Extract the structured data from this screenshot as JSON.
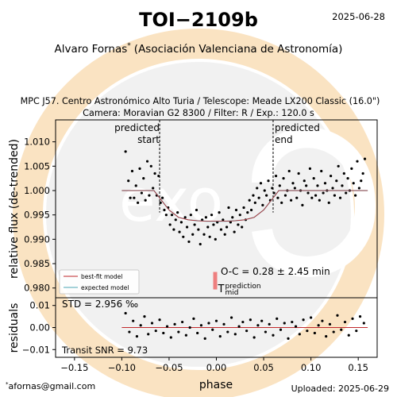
{
  "header": {
    "title": "TOI−2109b",
    "date": "2025-06-28",
    "observer": "Alvaro Fornas",
    "observer_mark": "*",
    "affiliation": "(Asociación Valenciana de Astronomía)",
    "obs_line1": "MPC J57. Centro Astronómico Alto Turia / Telescope: Meade LX200 Classic (16.0\")",
    "obs_line2": "Camera: Moravian G2 8300 / Filter: R / Exp.: 120.0 s"
  },
  "footer": {
    "email_mark": "*",
    "email": "afornas@gmail.com",
    "uploaded": "Uploaded: 2025-06-29"
  },
  "watermark": {
    "text": "exoclock",
    "colors": {
      "ring": "#f6c27a",
      "disc": "#d8d8d8"
    }
  },
  "colors": {
    "best_fit": "#c0282b",
    "expected": "#4aa5b4",
    "prediction_bar": "#ee7f7f",
    "points": "#000000"
  },
  "chart_data": [
    {
      "type": "scatter",
      "panel": "light-curve",
      "ylabel": "relative flux (de-trended)",
      "xlim": [
        -0.17,
        0.17
      ],
      "ylim": [
        0.978,
        1.0145
      ],
      "yticks": [
        "0.980",
        "0.985",
        "0.990",
        "0.995",
        "1.000",
        "1.005",
        "1.010"
      ],
      "ytick_values": [
        0.98,
        0.985,
        0.99,
        0.995,
        1.0,
        1.005,
        1.01
      ],
      "predicted_start": {
        "label_line1": "predicted",
        "label_line2": "start",
        "x": -0.06
      },
      "predicted_end": {
        "label_line1": "predicted",
        "label_line2": "end",
        "x": 0.06
      },
      "prediction_mid": {
        "label": "T",
        "sup": "prediction",
        "sub": "mid",
        "x": 0.0,
        "y": 0.9815
      },
      "oc_text": "O-C = 0.28 ± 2.45 min",
      "legend": {
        "placement": "bottom-left",
        "entries": [
          "best-fit model",
          "expected model"
        ]
      },
      "series": [
        {
          "name": "best-fit model",
          "color": "#c0282b"
        },
        {
          "name": "expected model",
          "color": "#4aa5b4"
        }
      ],
      "model": {
        "x": [
          -0.1,
          -0.066,
          -0.06,
          -0.05,
          -0.04,
          -0.03,
          -0.02,
          -0.01,
          0.0,
          0.01,
          0.02,
          0.03,
          0.04,
          0.05,
          0.06,
          0.066,
          0.16
        ],
        "y": [
          1.0,
          1.0,
          0.9985,
          0.996,
          0.9945,
          0.994,
          0.9938,
          0.9937,
          0.9937,
          0.9937,
          0.9938,
          0.994,
          0.9945,
          0.996,
          0.9985,
          1.0,
          1.0
        ]
      },
      "points": {
        "x": [
          -0.096,
          -0.093,
          -0.091,
          -0.089,
          -0.087,
          -0.085,
          -0.083,
          -0.081,
          -0.079,
          -0.077,
          -0.075,
          -0.073,
          -0.071,
          -0.069,
          -0.067,
          -0.065,
          -0.063,
          -0.061,
          -0.059,
          -0.057,
          -0.055,
          -0.053,
          -0.051,
          -0.049,
          -0.047,
          -0.045,
          -0.043,
          -0.041,
          -0.039,
          -0.037,
          -0.035,
          -0.033,
          -0.031,
          -0.029,
          -0.027,
          -0.025,
          -0.023,
          -0.021,
          -0.019,
          -0.017,
          -0.015,
          -0.013,
          -0.011,
          -0.009,
          -0.007,
          -0.005,
          -0.003,
          -0.001,
          0.001,
          0.003,
          0.005,
          0.007,
          0.009,
          0.011,
          0.013,
          0.015,
          0.017,
          0.019,
          0.021,
          0.023,
          0.025,
          0.027,
          0.029,
          0.031,
          0.033,
          0.035,
          0.037,
          0.039,
          0.041,
          0.043,
          0.045,
          0.047,
          0.049,
          0.051,
          0.053,
          0.055,
          0.057,
          0.059,
          0.061,
          0.063,
          0.065,
          0.067,
          0.069,
          0.071,
          0.073,
          0.075,
          0.077,
          0.079,
          0.081,
          0.083,
          0.085,
          0.087,
          0.089,
          0.091,
          0.093,
          0.095,
          0.097,
          0.099,
          0.101,
          0.103,
          0.105,
          0.107,
          0.109,
          0.111,
          0.113,
          0.115,
          0.117,
          0.119,
          0.121,
          0.123,
          0.125,
          0.127,
          0.129,
          0.131,
          0.133,
          0.135,
          0.137,
          0.139,
          0.141,
          0.143,
          0.145,
          0.147,
          0.149,
          0.151,
          0.153,
          0.155,
          0.157
        ],
        "y": [
          1.008,
          1.002,
          0.9985,
          1.004,
          0.9985,
          1.001,
          0.9975,
          1.0045,
          0.9995,
          1.0025,
          0.998,
          1.006,
          0.999,
          1.005,
          1.0005,
          1.0035,
          0.999,
          1.003,
          0.9975,
          0.9985,
          0.996,
          0.995,
          0.9965,
          0.993,
          0.995,
          0.992,
          0.994,
          0.9955,
          0.9915,
          0.9935,
          0.9905,
          0.9945,
          0.9925,
          0.9895,
          0.995,
          0.991,
          0.993,
          0.996,
          0.992,
          0.989,
          0.994,
          0.991,
          0.9945,
          0.9925,
          0.9905,
          0.995,
          0.993,
          0.99,
          0.9935,
          0.9955,
          0.992,
          0.994,
          0.991,
          0.9925,
          0.9965,
          0.9935,
          0.9945,
          0.9915,
          0.996,
          0.993,
          0.995,
          0.9925,
          0.9965,
          0.994,
          0.9955,
          0.998,
          0.996,
          0.999,
          0.9975,
          1.0005,
          0.9985,
          1.0015,
          0.997,
          1.0,
          0.999,
          1.002,
          0.998,
          1.0005,
          0.9995,
          1.003,
          0.9985,
          1.001,
          0.9975,
          1.0025,
          0.999,
          1.0,
          1.004,
          0.998,
          1.0015,
          1.0005,
          0.9985,
          1.0035,
          1.0,
          0.997,
          1.002,
          1.001,
          0.9995,
          1.0045,
          0.9985,
          1.0025,
          0.999,
          1.001,
          0.998,
          1.004,
          0.9995,
          1.0015,
          1.0,
          0.9975,
          1.003,
          1.0005,
          0.999,
          1.002,
          1.005,
          0.9985,
          1.001,
          1.0035,
          0.9995,
          1.0025,
          1.0,
          1.0045,
          1.0015,
          0.999,
          1.006,
          1.0005,
          1.002,
          1.0035,
          1.0065
        ]
      }
    },
    {
      "type": "scatter",
      "panel": "residuals",
      "ylabel": "residuals",
      "xlabel": "phase",
      "xlim": [
        -0.17,
        0.17
      ],
      "ylim": [
        -0.0135,
        0.0135
      ],
      "yticks": [
        "−0.01",
        "0.00",
        "0.01"
      ],
      "ytick_values": [
        -0.01,
        0.0,
        0.01
      ],
      "xticks": [
        "−0.15",
        "−0.10",
        "−0.05",
        "0.00",
        "0.05",
        "0.10",
        "0.15"
      ],
      "xtick_values": [
        -0.15,
        -0.1,
        -0.05,
        0.0,
        0.05,
        0.1,
        0.15
      ],
      "std_text": "STD = 2.956 ‰",
      "snr_text": "Transit SNR = 9.73",
      "zero_line": {
        "color": "#c0282b",
        "x": [
          -0.1,
          0.16
        ]
      },
      "points": {
        "x": [
          -0.096,
          -0.092,
          -0.088,
          -0.084,
          -0.08,
          -0.076,
          -0.072,
          -0.068,
          -0.064,
          -0.06,
          -0.056,
          -0.052,
          -0.048,
          -0.044,
          -0.04,
          -0.036,
          -0.032,
          -0.028,
          -0.024,
          -0.02,
          -0.016,
          -0.012,
          -0.008,
          -0.004,
          0.0,
          0.004,
          0.008,
          0.012,
          0.016,
          0.02,
          0.024,
          0.028,
          0.032,
          0.036,
          0.04,
          0.044,
          0.048,
          0.052,
          0.056,
          0.06,
          0.064,
          0.068,
          0.072,
          0.076,
          0.08,
          0.084,
          0.088,
          0.092,
          0.096,
          0.1,
          0.104,
          0.108,
          0.112,
          0.116,
          0.12,
          0.124,
          0.128,
          0.132,
          0.136,
          0.14,
          0.144,
          0.148,
          0.152,
          0.156
        ],
        "y": [
          0.0065,
          -0.002,
          0.003,
          -0.004,
          0.001,
          0.005,
          -0.003,
          0.002,
          -0.0015,
          0.0035,
          -0.0025,
          0.0005,
          -0.0045,
          0.0015,
          -0.002,
          0.0025,
          -0.0035,
          0.0,
          0.004,
          -0.0025,
          0.001,
          -0.005,
          0.002,
          -0.001,
          0.003,
          -0.004,
          0.0015,
          -0.002,
          0.0045,
          -0.003,
          0.0005,
          0.0025,
          -0.0015,
          0.0035,
          -0.0045,
          0.001,
          0.003,
          -0.002,
          0.0015,
          -0.0035,
          0.004,
          -0.001,
          0.002,
          -0.005,
          0.0025,
          0.0005,
          -0.003,
          0.0035,
          -0.0015,
          0.0045,
          -0.0025,
          0.001,
          0.003,
          -0.004,
          0.0015,
          -0.002,
          0.0055,
          -0.001,
          0.0025,
          -0.0035,
          0.004,
          -0.0015,
          0.005,
          0.002
        ]
      }
    }
  ]
}
